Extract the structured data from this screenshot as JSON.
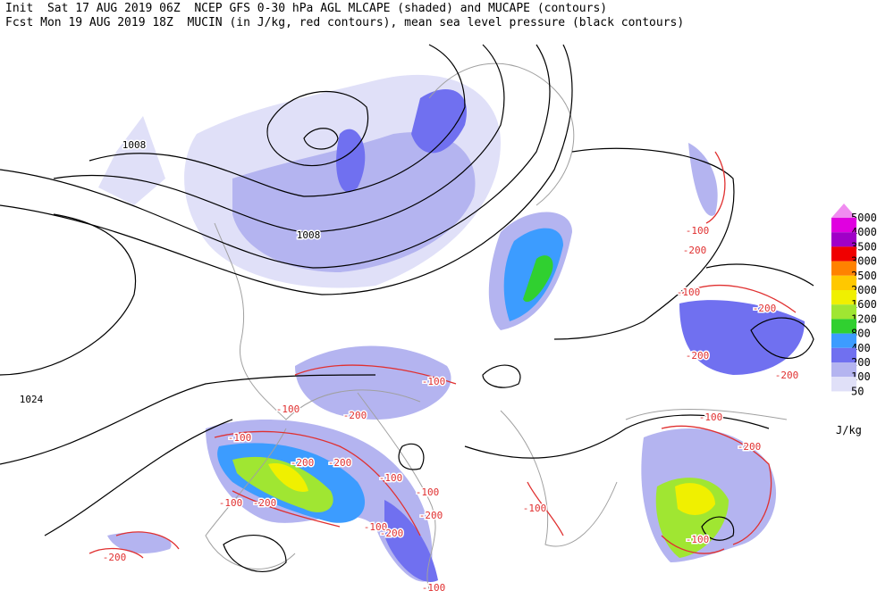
{
  "header": {
    "line1": "Init  Sat 17 AUG 2019 06Z  NCEP GFS 0-30 hPa AGL MLCAPE (shaded) and MUCAPE (contours)",
    "line2": "Fcst Mon 19 AUG 2019 18Z  MUCIN (in J/kg, red contours), mean sea level pressure (black contours)"
  },
  "legend": {
    "unit": "J/kg",
    "items": [
      {
        "label": 5000,
        "color": "#f08cf0"
      },
      {
        "label": 4000,
        "color": "#e000e0"
      },
      {
        "label": 3500,
        "color": "#a000c8"
      },
      {
        "label": 3000,
        "color": "#f00000"
      },
      {
        "label": 2500,
        "color": "#ff8200"
      },
      {
        "label": 2000,
        "color": "#ffc800"
      },
      {
        "label": 1600,
        "color": "#f0f000"
      },
      {
        "label": 1200,
        "color": "#a0e632"
      },
      {
        "label": 800,
        "color": "#30d030"
      },
      {
        "label": 400,
        "color": "#3c9cff"
      },
      {
        "label": 200,
        "color": "#7070f0"
      },
      {
        "label": 100,
        "color": "#b4b4f0"
      },
      {
        "label": 50,
        "color": "#e0e0f8"
      }
    ]
  },
  "contour_labels": [
    {
      "text": "1008",
      "color": "#000000"
    },
    {
      "text": "1008",
      "color": "#000000"
    },
    {
      "text": "1024",
      "color": "#000000"
    },
    {
      "text": "-100",
      "color": "#e03030"
    },
    {
      "text": "-200",
      "color": "#e03030"
    },
    {
      "text": "-100",
      "color": "#e03030"
    },
    {
      "text": "-200",
      "color": "#e03030"
    },
    {
      "text": "-200",
      "color": "#e03030"
    },
    {
      "text": "-200",
      "color": "#e03030"
    },
    {
      "text": "-100",
      "color": "#e03030"
    },
    {
      "text": "-200",
      "color": "#e03030"
    },
    {
      "text": "-100",
      "color": "#e03030"
    },
    {
      "text": "-100",
      "color": "#e03030"
    },
    {
      "text": "-200",
      "color": "#e03030"
    },
    {
      "text": "-100",
      "color": "#e03030"
    },
    {
      "text": "-200",
      "color": "#e03030"
    },
    {
      "text": "-200",
      "color": "#e03030"
    },
    {
      "text": "-100",
      "color": "#e03030"
    },
    {
      "text": "-200",
      "color": "#e03030"
    },
    {
      "text": "-100",
      "color": "#e03030"
    },
    {
      "text": "-100",
      "color": "#e03030"
    },
    {
      "text": "-200",
      "color": "#e03030"
    },
    {
      "text": "-100",
      "color": "#e03030"
    },
    {
      "text": "-100",
      "color": "#e03030"
    },
    {
      "text": "-200",
      "color": "#e03030"
    },
    {
      "text": "-200",
      "color": "#e03030"
    },
    {
      "text": "-100",
      "color": "#e03030"
    },
    {
      "text": "-100",
      "color": "#e03030"
    }
  ]
}
